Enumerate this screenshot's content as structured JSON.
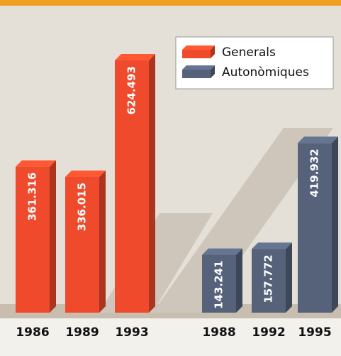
{
  "chart_data": {
    "type": "bar3d",
    "categories": [
      "1986",
      "1989",
      "1993",
      "1988",
      "1992",
      "1995"
    ],
    "series": [
      {
        "name": "Generals",
        "color": "#ef4a2b",
        "values": [
          361316,
          336015,
          624493,
          null,
          null,
          null
        ],
        "value_labels": [
          "361.316",
          "336.015",
          "624.493",
          null,
          null,
          null
        ]
      },
      {
        "name": "Autonòmiques",
        "color": "#55627a",
        "values": [
          null,
          null,
          null,
          143241,
          157772,
          419932
        ],
        "value_labels": [
          null,
          null,
          null,
          "143.241",
          "157.772",
          "419.932"
        ]
      }
    ],
    "legend": "top-right"
  }
}
